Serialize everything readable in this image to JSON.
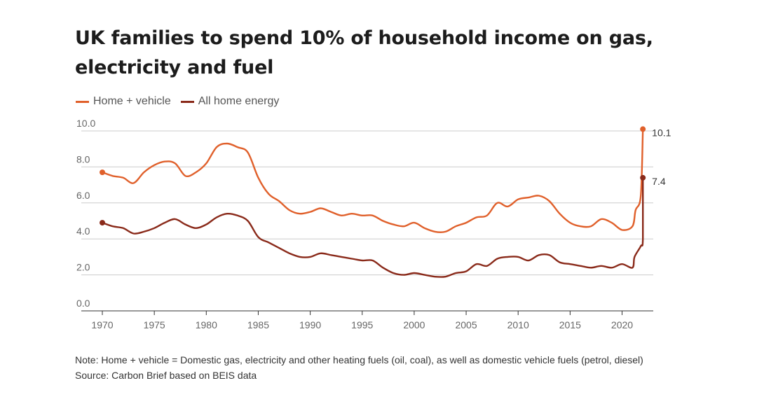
{
  "title": "UK families to spend 10% of household income on gas, electricity and fuel",
  "note": "Note: Home + vehicle = Domestic gas, electricity and other heating fuels (oil, coal), as well as domestic vehicle fuels (petrol, diesel)",
  "source": "Source: Carbon Brief based on BEIS data",
  "colors": {
    "home_vehicle": "#e0602b",
    "home_energy": "#8a2a1a",
    "grid": "#cccccc",
    "axis_text": "#666666"
  },
  "chart_data": {
    "type": "line",
    "title": "UK families to spend 10% of household income on gas, electricity and fuel",
    "xlabel": "",
    "ylabel": "",
    "xlim": [
      1970,
      2023
    ],
    "ylim": [
      0,
      10
    ],
    "x_ticks": [
      1970,
      1975,
      1980,
      1985,
      1990,
      1995,
      2000,
      2005,
      2010,
      2015,
      2020
    ],
    "y_ticks": [
      "0.0",
      "2.0",
      "4.0",
      "6.0",
      "8.0",
      "10.0"
    ],
    "grid": true,
    "legend_position": "top-left",
    "series": [
      {
        "name": "Home + vehicle",
        "color": "#e0602b",
        "points": [
          [
            1970,
            7.7
          ],
          [
            1971,
            7.5
          ],
          [
            1972,
            7.4
          ],
          [
            1973,
            7.1
          ],
          [
            1974,
            7.7
          ],
          [
            1975,
            8.1
          ],
          [
            1976,
            8.3
          ],
          [
            1977,
            8.2
          ],
          [
            1978,
            7.5
          ],
          [
            1979,
            7.7
          ],
          [
            1980,
            8.2
          ],
          [
            1981,
            9.1
          ],
          [
            1982,
            9.3
          ],
          [
            1983,
            9.1
          ],
          [
            1984,
            8.8
          ],
          [
            1985,
            7.4
          ],
          [
            1986,
            6.5
          ],
          [
            1987,
            6.1
          ],
          [
            1988,
            5.6
          ],
          [
            1989,
            5.4
          ],
          [
            1990,
            5.5
          ],
          [
            1991,
            5.7
          ],
          [
            1992,
            5.5
          ],
          [
            1993,
            5.3
          ],
          [
            1994,
            5.4
          ],
          [
            1995,
            5.3
          ],
          [
            1996,
            5.3
          ],
          [
            1997,
            5.0
          ],
          [
            1998,
            4.8
          ],
          [
            1999,
            4.7
          ],
          [
            2000,
            4.9
          ],
          [
            2001,
            4.6
          ],
          [
            2002,
            4.4
          ],
          [
            2003,
            4.4
          ],
          [
            2004,
            4.7
          ],
          [
            2005,
            4.9
          ],
          [
            2006,
            5.2
          ],
          [
            2007,
            5.3
          ],
          [
            2008,
            6.0
          ],
          [
            2009,
            5.8
          ],
          [
            2010,
            6.2
          ],
          [
            2011,
            6.3
          ],
          [
            2012,
            6.4
          ],
          [
            2013,
            6.1
          ],
          [
            2014,
            5.4
          ],
          [
            2015,
            4.9
          ],
          [
            2016,
            4.7
          ],
          [
            2017,
            4.7
          ],
          [
            2018,
            5.1
          ],
          [
            2019,
            4.9
          ],
          [
            2020,
            4.5
          ],
          [
            2021,
            4.7
          ],
          [
            2021.3,
            5.6
          ],
          [
            2021.8,
            6.4
          ],
          [
            2022,
            10.1
          ]
        ],
        "end_label": "10.1"
      },
      {
        "name": "All home energy",
        "color": "#8a2a1a",
        "points": [
          [
            1970,
            4.9
          ],
          [
            1971,
            4.7
          ],
          [
            1972,
            4.6
          ],
          [
            1973,
            4.3
          ],
          [
            1974,
            4.4
          ],
          [
            1975,
            4.6
          ],
          [
            1976,
            4.9
          ],
          [
            1977,
            5.1
          ],
          [
            1978,
            4.8
          ],
          [
            1979,
            4.6
          ],
          [
            1980,
            4.8
          ],
          [
            1981,
            5.2
          ],
          [
            1982,
            5.4
          ],
          [
            1983,
            5.3
          ],
          [
            1984,
            5.0
          ],
          [
            1985,
            4.1
          ],
          [
            1986,
            3.8
          ],
          [
            1987,
            3.5
          ],
          [
            1988,
            3.2
          ],
          [
            1989,
            3.0
          ],
          [
            1990,
            3.0
          ],
          [
            1991,
            3.2
          ],
          [
            1992,
            3.1
          ],
          [
            1993,
            3.0
          ],
          [
            1994,
            2.9
          ],
          [
            1995,
            2.8
          ],
          [
            1996,
            2.8
          ],
          [
            1997,
            2.4
          ],
          [
            1998,
            2.1
          ],
          [
            1999,
            2.0
          ],
          [
            2000,
            2.1
          ],
          [
            2001,
            2.0
          ],
          [
            2002,
            1.9
          ],
          [
            2003,
            1.9
          ],
          [
            2004,
            2.1
          ],
          [
            2005,
            2.2
          ],
          [
            2006,
            2.6
          ],
          [
            2007,
            2.5
          ],
          [
            2008,
            2.9
          ],
          [
            2009,
            3.0
          ],
          [
            2010,
            3.0
          ],
          [
            2011,
            2.8
          ],
          [
            2012,
            3.1
          ],
          [
            2013,
            3.1
          ],
          [
            2014,
            2.7
          ],
          [
            2015,
            2.6
          ],
          [
            2016,
            2.5
          ],
          [
            2017,
            2.4
          ],
          [
            2018,
            2.5
          ],
          [
            2019,
            2.4
          ],
          [
            2020,
            2.6
          ],
          [
            2021,
            2.4
          ],
          [
            2021.2,
            3.0
          ],
          [
            2021.8,
            3.6
          ],
          [
            2022,
            4.0
          ],
          [
            2022,
            7.4
          ]
        ],
        "end_label": "7.4"
      }
    ]
  }
}
